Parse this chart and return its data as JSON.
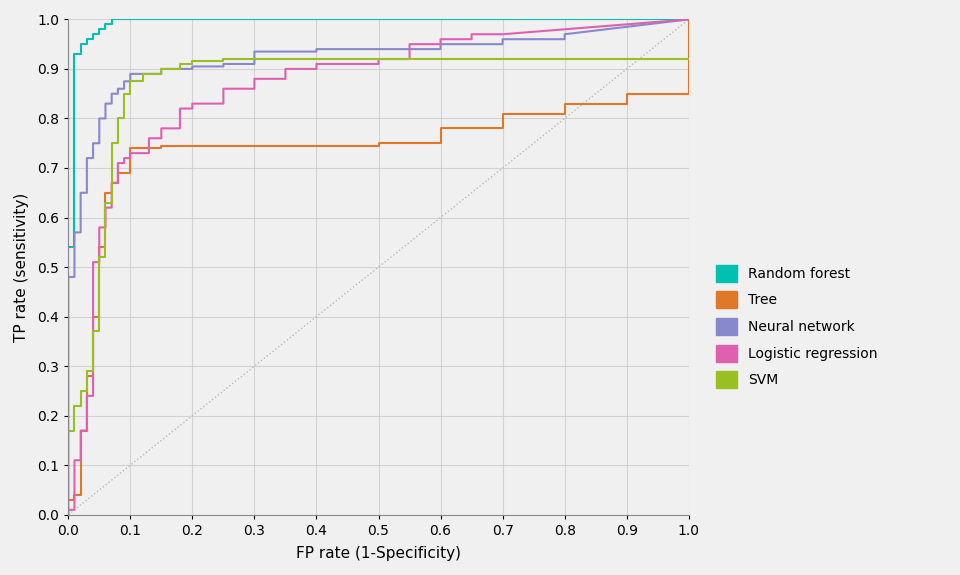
{
  "xlabel": "FP rate (1-Specificity)",
  "ylabel": "TP rate (sensitivity)",
  "xlim": [
    0.0,
    1.0
  ],
  "ylim": [
    0.0,
    1.0
  ],
  "background_color": "#f0f0f0",
  "plot_bg_color": "#f0f0f0",
  "grid_color": "#cccccc",
  "diagonal_color": "#bbbbbb",
  "curves": {
    "Random forest": {
      "color": "#00c0b0",
      "fpr": [
        0.0,
        0.0,
        0.01,
        0.01,
        0.02,
        0.02,
        0.03,
        0.03,
        0.04,
        0.04,
        0.05,
        0.05,
        0.06,
        0.06,
        0.07,
        0.07,
        0.08,
        0.08,
        0.09,
        0.09,
        0.1,
        0.1,
        0.15,
        0.15,
        0.2,
        0.2,
        1.0
      ],
      "tpr": [
        0.0,
        0.54,
        0.54,
        0.93,
        0.93,
        0.95,
        0.95,
        0.96,
        0.96,
        0.97,
        0.97,
        0.98,
        0.98,
        0.99,
        0.99,
        1.0,
        1.0,
        1.0,
        1.0,
        1.0,
        1.0,
        1.0,
        1.0,
        1.0,
        1.0,
        1.0,
        1.0
      ]
    },
    "Tree": {
      "color": "#e07828",
      "fpr": [
        0.0,
        0.0,
        0.01,
        0.01,
        0.02,
        0.02,
        0.03,
        0.03,
        0.04,
        0.04,
        0.05,
        0.05,
        0.06,
        0.06,
        0.07,
        0.07,
        0.08,
        0.08,
        0.1,
        0.1,
        0.15,
        0.15,
        0.2,
        0.2,
        0.25,
        0.25,
        0.3,
        0.3,
        0.35,
        0.35,
        0.4,
        0.4,
        0.5,
        0.5,
        0.6,
        0.6,
        0.7,
        0.7,
        0.8,
        0.8,
        0.9,
        0.9,
        1.0,
        1.0
      ],
      "tpr": [
        0.0,
        0.03,
        0.03,
        0.04,
        0.04,
        0.17,
        0.17,
        0.28,
        0.28,
        0.4,
        0.4,
        0.54,
        0.54,
        0.65,
        0.65,
        0.67,
        0.67,
        0.69,
        0.69,
        0.74,
        0.74,
        0.745,
        0.745,
        0.745,
        0.745,
        0.745,
        0.745,
        0.745,
        0.745,
        0.745,
        0.745,
        0.745,
        0.745,
        0.75,
        0.75,
        0.78,
        0.78,
        0.81,
        0.81,
        0.83,
        0.83,
        0.85,
        0.85,
        1.0
      ]
    },
    "Neural network": {
      "color": "#8888cc",
      "fpr": [
        0.0,
        0.0,
        0.01,
        0.01,
        0.02,
        0.02,
        0.03,
        0.03,
        0.04,
        0.04,
        0.05,
        0.05,
        0.06,
        0.06,
        0.07,
        0.07,
        0.08,
        0.08,
        0.09,
        0.09,
        0.1,
        0.1,
        0.15,
        0.15,
        0.2,
        0.2,
        0.25,
        0.25,
        0.3,
        0.3,
        0.4,
        0.4,
        0.6,
        0.6,
        0.7,
        0.7,
        0.8,
        0.8,
        1.0
      ],
      "tpr": [
        0.0,
        0.48,
        0.48,
        0.57,
        0.57,
        0.65,
        0.65,
        0.72,
        0.72,
        0.75,
        0.75,
        0.8,
        0.8,
        0.83,
        0.83,
        0.85,
        0.85,
        0.86,
        0.86,
        0.875,
        0.875,
        0.89,
        0.89,
        0.9,
        0.9,
        0.905,
        0.905,
        0.91,
        0.91,
        0.935,
        0.935,
        0.94,
        0.94,
        0.95,
        0.95,
        0.96,
        0.96,
        0.97,
        1.0
      ]
    },
    "Logistic regression": {
      "color": "#e060b0",
      "fpr": [
        0.0,
        0.0,
        0.01,
        0.01,
        0.02,
        0.02,
        0.03,
        0.03,
        0.04,
        0.04,
        0.05,
        0.05,
        0.06,
        0.06,
        0.07,
        0.07,
        0.08,
        0.08,
        0.09,
        0.09,
        0.1,
        0.1,
        0.13,
        0.13,
        0.15,
        0.15,
        0.18,
        0.18,
        0.2,
        0.2,
        0.25,
        0.25,
        0.3,
        0.3,
        0.35,
        0.35,
        0.4,
        0.4,
        0.5,
        0.5,
        0.55,
        0.55,
        0.6,
        0.6,
        0.65,
        0.65,
        0.7,
        0.7,
        1.0
      ],
      "tpr": [
        0.0,
        0.01,
        0.01,
        0.11,
        0.11,
        0.17,
        0.17,
        0.24,
        0.24,
        0.51,
        0.51,
        0.58,
        0.58,
        0.62,
        0.62,
        0.67,
        0.67,
        0.71,
        0.71,
        0.72,
        0.72,
        0.73,
        0.73,
        0.76,
        0.76,
        0.78,
        0.78,
        0.82,
        0.82,
        0.83,
        0.83,
        0.86,
        0.86,
        0.88,
        0.88,
        0.9,
        0.9,
        0.91,
        0.91,
        0.92,
        0.92,
        0.95,
        0.95,
        0.96,
        0.96,
        0.97,
        0.97,
        0.97,
        1.0
      ]
    },
    "SVM": {
      "color": "#98c020",
      "fpr": [
        0.0,
        0.0,
        0.01,
        0.01,
        0.02,
        0.02,
        0.03,
        0.03,
        0.04,
        0.04,
        0.05,
        0.05,
        0.06,
        0.06,
        0.07,
        0.07,
        0.08,
        0.08,
        0.09,
        0.09,
        0.1,
        0.1,
        0.12,
        0.12,
        0.15,
        0.15,
        0.18,
        0.18,
        0.2,
        0.2,
        0.25,
        0.25,
        0.3,
        0.3,
        0.4,
        0.4,
        0.5,
        0.5,
        0.6,
        0.6,
        0.7,
        0.7,
        0.8,
        0.8,
        0.9,
        0.9,
        1.0
      ],
      "tpr": [
        0.0,
        0.17,
        0.17,
        0.22,
        0.22,
        0.25,
        0.25,
        0.29,
        0.29,
        0.37,
        0.37,
        0.52,
        0.52,
        0.63,
        0.63,
        0.75,
        0.75,
        0.8,
        0.8,
        0.85,
        0.85,
        0.875,
        0.875,
        0.89,
        0.89,
        0.9,
        0.9,
        0.91,
        0.91,
        0.915,
        0.915,
        0.92,
        0.92,
        0.92,
        0.92,
        0.92,
        0.92,
        0.92,
        0.92,
        0.92,
        0.92,
        0.92,
        0.92,
        0.92,
        0.92,
        0.92,
        0.92
      ]
    }
  },
  "legend_labels": [
    "Random forest",
    "Tree",
    "Neural network",
    "Logistic regression",
    "SVM"
  ],
  "legend_colors": [
    "#00c0b0",
    "#e07828",
    "#8888cc",
    "#e060b0",
    "#98c020"
  ],
  "fontsize_ticks": 10,
  "fontsize_labels": 11,
  "fontsize_legend": 10
}
